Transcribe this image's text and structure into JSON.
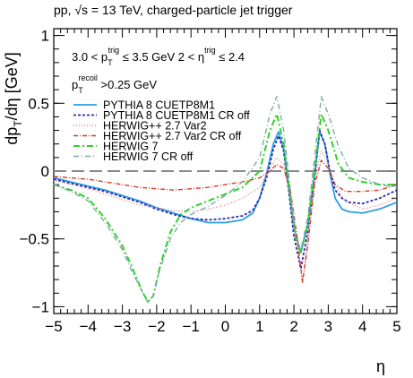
{
  "chart_data": {
    "type": "line",
    "title": "",
    "header_text": "pp, √s = 13 TeV,  charged-particle jet trigger",
    "annotations": {
      "pt_range": {
        "lo": "3.0 < p",
        "sub": "T",
        "sup": "trig",
        "mid": " ≤ 3.5 GeV   2 < η",
        "sup2": "trig",
        "hi": " ≤ 2.4"
      },
      "recoil": {
        "lo": "p",
        "sub": "T",
        "sup": "recoil",
        "hi": " >0.25 GeV"
      }
    },
    "xlabel": "η",
    "ylabel": "dp",
    "ylabel_sub": "T",
    "ylabel_rest": "/dη [GeV]",
    "xlim": [
      -5,
      5
    ],
    "ylim": [
      -1.05,
      1.05
    ],
    "xticks": [
      -5,
      -4,
      -3,
      -2,
      -1,
      0,
      1,
      2,
      3,
      4,
      5
    ],
    "xtick_labels": [
      "−5",
      "−4",
      "−3",
      "−2",
      "−1",
      "0",
      "1",
      "2",
      "3",
      "4",
      "5"
    ],
    "yticks": [
      -1,
      -0.5,
      0,
      0.5,
      1
    ],
    "ytick_labels": [
      "−1",
      "−0.5",
      "0",
      "0.5",
      "1"
    ],
    "zero_line": true,
    "legend_placement": "upper-left",
    "series": [
      {
        "name": "PYTHIA 8 CUETP8M1",
        "color": "#2c9fe0",
        "dash": "",
        "width": 1.8,
        "x": [
          -5,
          -4.5,
          -4,
          -3.5,
          -3,
          -2.5,
          -2,
          -1.5,
          -1,
          -0.5,
          0,
          0.5,
          0.8,
          1,
          1.2,
          1.4,
          1.55,
          1.7,
          1.85,
          2,
          2.2,
          2.4,
          2.6,
          2.75,
          2.9,
          3.05,
          3.2,
          3.4,
          3.6,
          4,
          4.5,
          5
        ],
        "y": [
          -0.05,
          -0.08,
          -0.11,
          -0.14,
          -0.18,
          -0.22,
          -0.27,
          -0.31,
          -0.35,
          -0.38,
          -0.38,
          -0.36,
          -0.31,
          -0.2,
          -0.02,
          0.2,
          0.29,
          0.17,
          -0.12,
          -0.42,
          -0.6,
          -0.4,
          -0.03,
          0.29,
          0.2,
          -0.02,
          -0.2,
          -0.28,
          -0.3,
          -0.31,
          -0.28,
          -0.23
        ]
      },
      {
        "name": "PYTHIA 8 CUETP8M1 CR off",
        "color": "#2b2bb0",
        "dash": "3,2",
        "width": 1.8,
        "x": [
          -5,
          -4.5,
          -4,
          -3.5,
          -3,
          -2.5,
          -2,
          -1.5,
          -1,
          -0.5,
          0,
          0.5,
          0.8,
          1,
          1.2,
          1.4,
          1.55,
          1.7,
          1.85,
          2,
          2.2,
          2.4,
          2.6,
          2.75,
          2.9,
          3.05,
          3.2,
          3.4,
          3.6,
          4,
          4.5,
          5
        ],
        "y": [
          -0.06,
          -0.09,
          -0.12,
          -0.15,
          -0.19,
          -0.23,
          -0.28,
          -0.32,
          -0.35,
          -0.36,
          -0.35,
          -0.33,
          -0.29,
          -0.2,
          -0.05,
          0.16,
          0.26,
          0.15,
          -0.15,
          -0.48,
          -0.72,
          -0.45,
          -0.05,
          0.3,
          0.2,
          0.0,
          -0.14,
          -0.2,
          -0.23,
          -0.24,
          -0.2,
          -0.14
        ]
      },
      {
        "name": "HERWIG++ 2.7 Var2",
        "color": "#e08a8a",
        "dash": "1,2",
        "width": 1.4,
        "x": [
          -5,
          -4.5,
          -4,
          -3.5,
          -3,
          -2.5,
          -2,
          -1.5,
          -1,
          -0.5,
          0,
          0.5,
          1,
          1.3,
          1.5,
          1.7,
          1.9,
          2.1,
          2.25,
          2.4,
          2.6,
          2.8,
          3,
          3.2,
          3.5,
          4,
          4.5,
          5
        ],
        "y": [
          -0.07,
          -0.1,
          -0.13,
          -0.17,
          -0.21,
          -0.25,
          -0.27,
          -0.29,
          -0.3,
          -0.28,
          -0.25,
          -0.2,
          -0.12,
          0.02,
          0.1,
          0.05,
          -0.2,
          -0.55,
          -0.82,
          -0.5,
          -0.05,
          0.15,
          0.05,
          -0.1,
          -0.22,
          -0.28,
          -0.25,
          -0.2
        ]
      },
      {
        "name": "HERWIG++ 2.7 Var2 CR off",
        "color": "#d43c2a",
        "dash": "5,2,1,2",
        "width": 1.4,
        "x": [
          -5,
          -4.5,
          -4,
          -3.5,
          -3,
          -2.5,
          -2,
          -1.5,
          -1,
          -0.5,
          0,
          0.5,
          1,
          1.3,
          1.5,
          1.7,
          1.9,
          2.1,
          2.25,
          2.4,
          2.6,
          2.8,
          3,
          3.2,
          3.5,
          4,
          4.5,
          5
        ],
        "y": [
          -0.04,
          -0.05,
          -0.06,
          -0.08,
          -0.1,
          -0.12,
          -0.13,
          -0.14,
          -0.13,
          -0.12,
          -0.1,
          -0.08,
          -0.05,
          0.0,
          0.05,
          0.02,
          -0.15,
          -0.5,
          -0.82,
          -0.55,
          -0.1,
          0.08,
          0.02,
          -0.1,
          -0.15,
          -0.15,
          -0.14,
          -0.1
        ]
      },
      {
        "name": "HERWIG 7",
        "color": "#2ed12e",
        "dash": "7,3,2,3",
        "width": 2,
        "x": [
          -5,
          -4.5,
          -4,
          -3.5,
          -3,
          -2.7,
          -2.4,
          -2.25,
          -2.1,
          -1.9,
          -1.6,
          -1.3,
          -1,
          -0.5,
          0,
          0.5,
          1,
          1.3,
          1.5,
          1.7,
          1.9,
          2.05,
          2.2,
          2.4,
          2.6,
          2.8,
          3,
          3.3,
          3.6,
          4,
          4.5,
          5
        ],
        "y": [
          -0.1,
          -0.14,
          -0.2,
          -0.35,
          -0.55,
          -0.72,
          -0.9,
          -0.96,
          -0.92,
          -0.7,
          -0.45,
          -0.32,
          -0.27,
          -0.22,
          -0.17,
          -0.12,
          0.0,
          0.3,
          0.42,
          0.2,
          -0.2,
          -0.5,
          -0.6,
          -0.4,
          0.0,
          0.42,
          0.3,
          0.05,
          -0.05,
          -0.08,
          -0.1,
          -0.1
        ]
      },
      {
        "name": "HERWIG 7 CR off",
        "color": "#7fa8a8",
        "dash": "6,3,1,3",
        "width": 1.4,
        "x": [
          -5,
          -4.5,
          -4,
          -3.5,
          -3,
          -2.7,
          -2.4,
          -2.25,
          -2.1,
          -1.9,
          -1.6,
          -1.3,
          -1,
          -0.5,
          0,
          0.5,
          1,
          1.3,
          1.5,
          1.7,
          1.9,
          2.05,
          2.2,
          2.4,
          2.6,
          2.8,
          3,
          3.3,
          3.6,
          4,
          4.5,
          5
        ],
        "y": [
          -0.1,
          -0.15,
          -0.22,
          -0.38,
          -0.58,
          -0.75,
          -0.9,
          -0.97,
          -0.92,
          -0.72,
          -0.5,
          -0.38,
          -0.32,
          -0.26,
          -0.18,
          -0.08,
          0.1,
          0.42,
          0.55,
          0.3,
          -0.15,
          -0.48,
          -0.58,
          -0.35,
          0.1,
          0.55,
          0.42,
          0.18,
          0.02,
          -0.05,
          -0.1,
          -0.12
        ]
      }
    ]
  }
}
